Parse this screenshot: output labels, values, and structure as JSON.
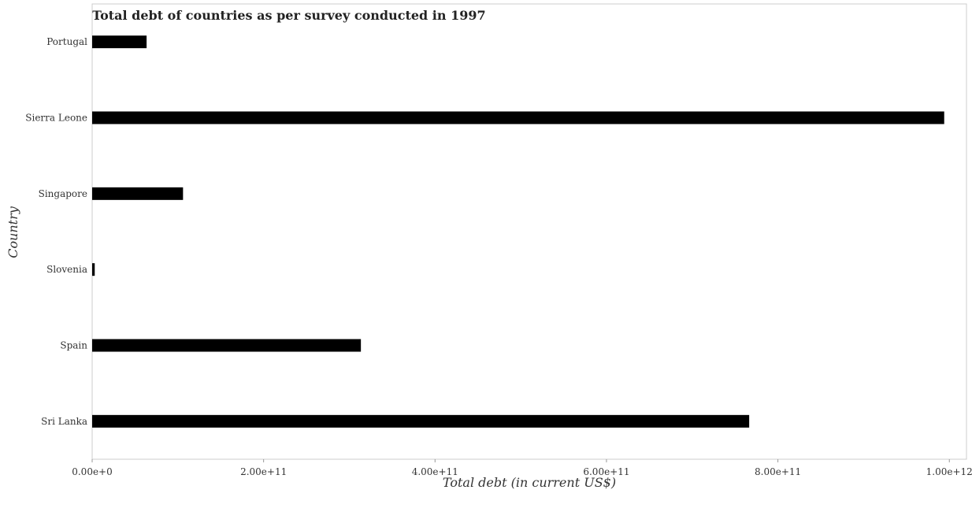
{
  "chart_data": {
    "type": "bar",
    "orientation": "horizontal",
    "title": "Total debt of countries as per survey conducted in 1997",
    "xlabel": "Total debt (in current US$)",
    "ylabel": "Country",
    "categories": [
      "Portugal",
      "Sierra Leone",
      "Singapore",
      "Slovenia",
      "Spain",
      "Sri Lanka"
    ],
    "values": [
      63500000000,
      994000000000,
      106000000000,
      3000000000,
      313500000000,
      766500000000
    ],
    "xlim": [
      0,
      1020000000000
    ],
    "x_ticks": [
      0,
      200000000000,
      400000000000,
      600000000000,
      800000000000,
      1000000000000
    ],
    "x_tick_labels": [
      "0.00e+0",
      "2.00e+11",
      "4.00e+11",
      "6.00e+11",
      "8.00e+11",
      "1.00e+12"
    ],
    "bar_color": "#000000",
    "grid": false,
    "legend": "none"
  }
}
